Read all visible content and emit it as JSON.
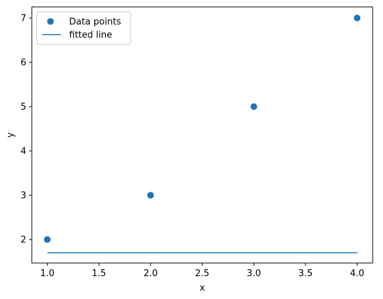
{
  "chart_data": {
    "type": "scatter",
    "xlabel": "x",
    "ylabel": "y",
    "xlim": [
      0.85,
      4.15
    ],
    "ylim": [
      1.47,
      7.25
    ],
    "xticks": [
      1.0,
      1.5,
      2.0,
      2.5,
      3.0,
      3.5,
      4.0
    ],
    "xtick_labels": [
      "1.0",
      "1.5",
      "2.0",
      "2.5",
      "3.0",
      "3.5",
      "4.0"
    ],
    "yticks": [
      2,
      3,
      4,
      5,
      6,
      7
    ],
    "ytick_labels": [
      "2",
      "3",
      "4",
      "5",
      "6",
      "7"
    ],
    "grid": false,
    "legend_position": "top-left",
    "series": [
      {
        "name": "Data points",
        "kind": "scatter",
        "color": "#1f77b4",
        "x": [
          1,
          2,
          3,
          4
        ],
        "y": [
          2,
          3,
          5,
          7
        ]
      },
      {
        "name": "fitted line",
        "kind": "line",
        "color": "#1f77b4",
        "x": [
          1,
          4
        ],
        "y": [
          1.7,
          1.7
        ]
      }
    ]
  }
}
